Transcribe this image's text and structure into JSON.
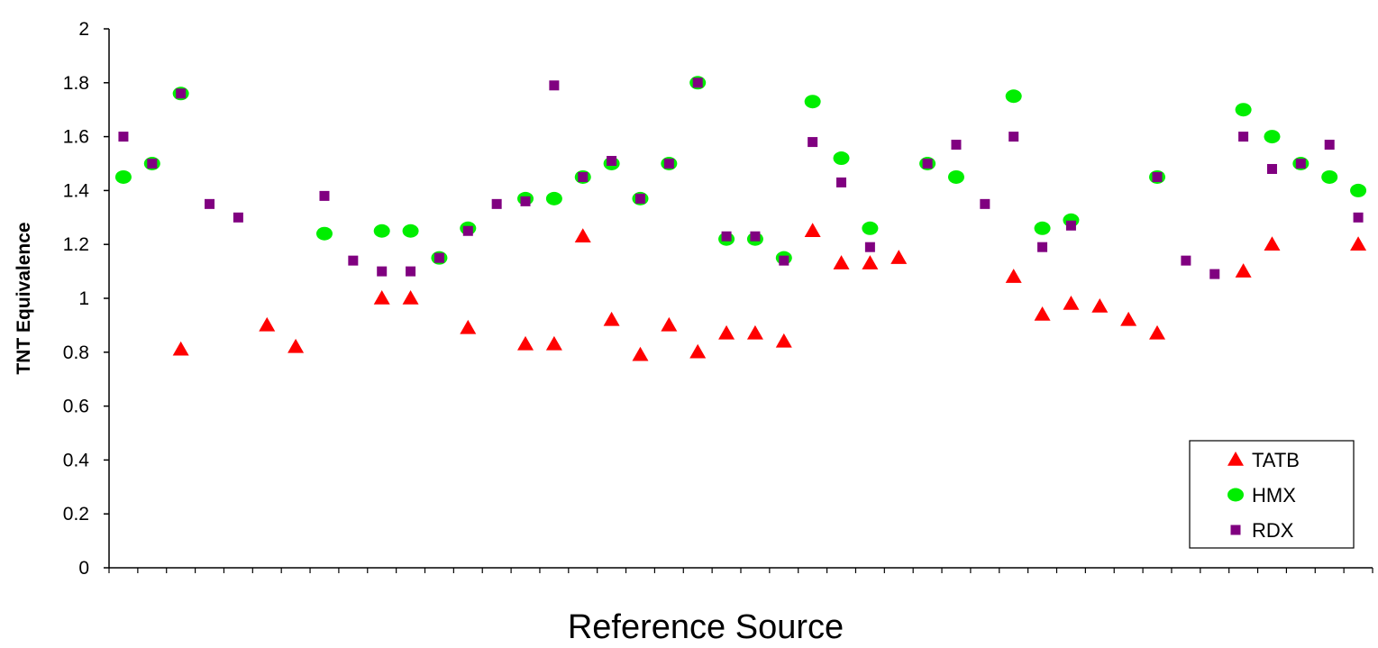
{
  "chart_data": {
    "type": "scatter",
    "title": "",
    "xlabel": "Reference Source",
    "ylabel": "TNT Equivalence",
    "ylim": [
      0,
      2
    ],
    "yticks": [
      "0",
      "0.2",
      "0.4",
      "0.6",
      "0.8",
      "1",
      "1.2",
      "1.4",
      "1.6",
      "1.8",
      "2"
    ],
    "x_categories": 44,
    "grid": false,
    "legend_position": "bottom-right",
    "series": [
      {
        "name": "TATB",
        "marker": "triangle",
        "color": "#ff0000",
        "points": [
          [
            3,
            0.81
          ],
          [
            6,
            0.9
          ],
          [
            7,
            0.82
          ],
          [
            10,
            1.0
          ],
          [
            11,
            1.0
          ],
          [
            13,
            0.89
          ],
          [
            15,
            0.83
          ],
          [
            16,
            0.83
          ],
          [
            17,
            1.23
          ],
          [
            18,
            0.92
          ],
          [
            19,
            0.79
          ],
          [
            20,
            0.9
          ],
          [
            21,
            0.8
          ],
          [
            22,
            0.87
          ],
          [
            23,
            0.87
          ],
          [
            24,
            0.84
          ],
          [
            25,
            1.25
          ],
          [
            26,
            1.13
          ],
          [
            27,
            1.13
          ],
          [
            28,
            1.15
          ],
          [
            32,
            1.08
          ],
          [
            33,
            0.94
          ],
          [
            34,
            0.98
          ],
          [
            35,
            0.97
          ],
          [
            36,
            0.92
          ],
          [
            37,
            0.87
          ],
          [
            40,
            1.1
          ],
          [
            41,
            1.2
          ],
          [
            44,
            1.2
          ]
        ]
      },
      {
        "name": "HMX",
        "marker": "circle",
        "color": "#00ee00",
        "points": [
          [
            1,
            1.45
          ],
          [
            2,
            1.5
          ],
          [
            3,
            1.76
          ],
          [
            8,
            1.24
          ],
          [
            10,
            1.25
          ],
          [
            11,
            1.25
          ],
          [
            12,
            1.15
          ],
          [
            13,
            1.26
          ],
          [
            15,
            1.37
          ],
          [
            16,
            1.37
          ],
          [
            17,
            1.45
          ],
          [
            18,
            1.5
          ],
          [
            19,
            1.37
          ],
          [
            20,
            1.5
          ],
          [
            21,
            1.8
          ],
          [
            22,
            1.22
          ],
          [
            23,
            1.22
          ],
          [
            24,
            1.15
          ],
          [
            25,
            1.73
          ],
          [
            26,
            1.52
          ],
          [
            27,
            1.26
          ],
          [
            29,
            1.5
          ],
          [
            30,
            1.45
          ],
          [
            32,
            1.75
          ],
          [
            33,
            1.26
          ],
          [
            34,
            1.29
          ],
          [
            37,
            1.45
          ],
          [
            40,
            1.7
          ],
          [
            41,
            1.6
          ],
          [
            42,
            1.5
          ],
          [
            43,
            1.45
          ],
          [
            44,
            1.4
          ]
        ]
      },
      {
        "name": "RDX",
        "marker": "square",
        "color": "#800080",
        "points": [
          [
            1,
            1.6
          ],
          [
            2,
            1.5
          ],
          [
            3,
            1.76
          ],
          [
            4,
            1.35
          ],
          [
            5,
            1.3
          ],
          [
            8,
            1.38
          ],
          [
            9,
            1.14
          ],
          [
            10,
            1.1
          ],
          [
            11,
            1.1
          ],
          [
            12,
            1.15
          ],
          [
            13,
            1.25
          ],
          [
            14,
            1.35
          ],
          [
            15,
            1.36
          ],
          [
            16,
            1.79
          ],
          [
            17,
            1.45
          ],
          [
            18,
            1.51
          ],
          [
            19,
            1.37
          ],
          [
            20,
            1.5
          ],
          [
            21,
            1.8
          ],
          [
            22,
            1.23
          ],
          [
            23,
            1.23
          ],
          [
            24,
            1.14
          ],
          [
            25,
            1.58
          ],
          [
            26,
            1.43
          ],
          [
            27,
            1.19
          ],
          [
            29,
            1.5
          ],
          [
            30,
            1.57
          ],
          [
            31,
            1.35
          ],
          [
            32,
            1.6
          ],
          [
            33,
            1.19
          ],
          [
            34,
            1.27
          ],
          [
            37,
            1.45
          ],
          [
            38,
            1.14
          ],
          [
            39,
            1.09
          ],
          [
            40,
            1.6
          ],
          [
            41,
            1.48
          ],
          [
            42,
            1.5
          ],
          [
            43,
            1.57
          ],
          [
            44,
            1.3
          ]
        ]
      }
    ]
  }
}
